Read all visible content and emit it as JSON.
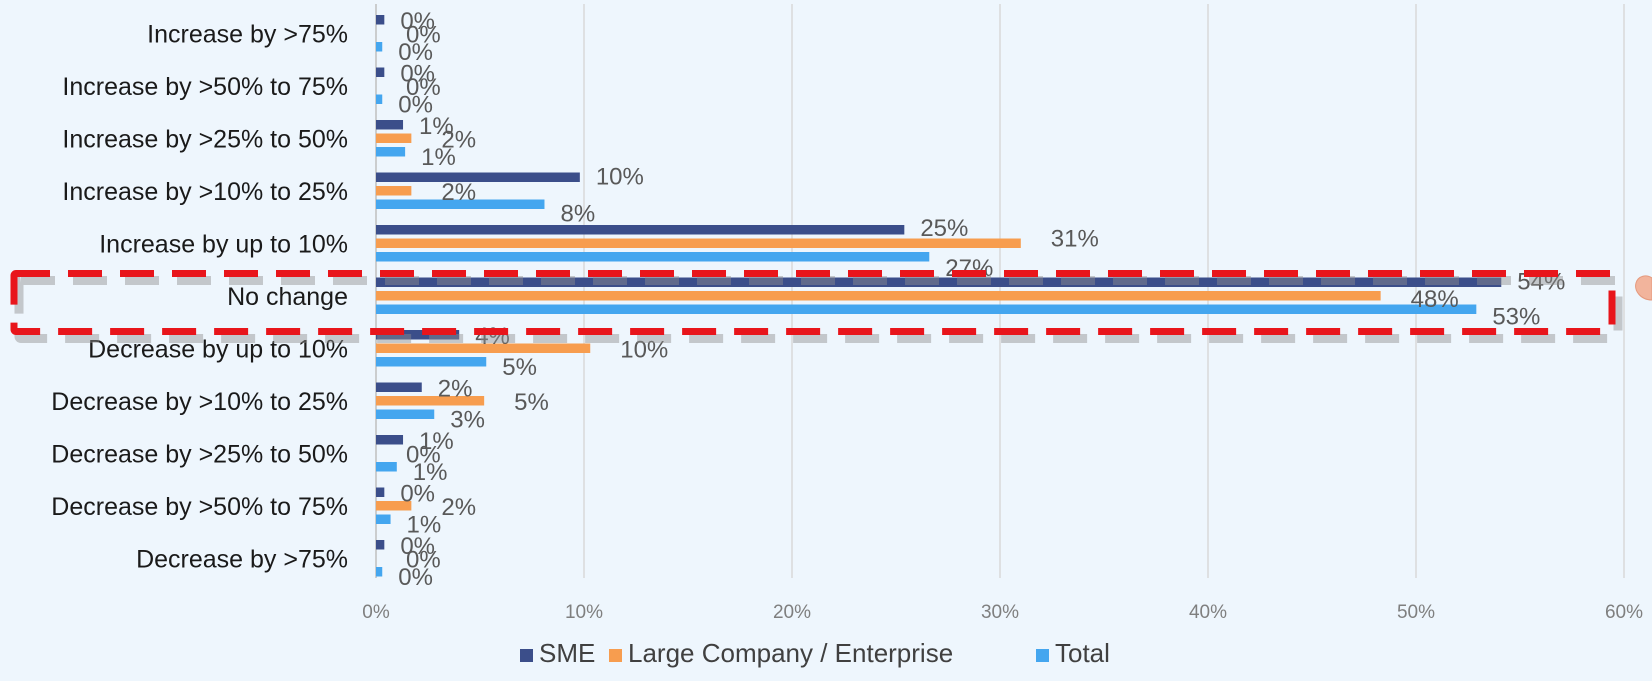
{
  "chart_data": {
    "type": "bar",
    "orientation": "horizontal",
    "categories": [
      "Increase by >75%",
      "Increase by >50% to 75%",
      "Increase by >25% to 50%",
      "Increase by >10% to 25%",
      "Increase by up to 10%",
      "No change",
      "Decrease by up to 10%",
      "Decrease by >10% to 25%",
      "Decrease by >25% to 50%",
      "Decrease by >50% to 75%",
      "Decrease by >75%"
    ],
    "series": [
      {
        "name": "SME",
        "color": "#3b4e8a",
        "values": [
          0.4,
          0.4,
          1.3,
          9.8,
          25.4,
          54.1,
          4.0,
          2.2,
          1.3,
          0.4,
          0.4
        ],
        "labels": [
          "0%",
          "0%",
          "1%",
          "10%",
          "25%",
          "54%",
          "4%",
          "2%",
          "1%",
          "0%",
          "0%"
        ]
      },
      {
        "name": "Large Company / Enterprise",
        "color": "#f79d4f",
        "values": [
          0.0,
          0.0,
          1.7,
          1.7,
          31.0,
          48.3,
          10.3,
          5.2,
          0.0,
          1.7,
          0.0
        ],
        "labels": [
          "0%",
          "0%",
          "2%",
          "2%",
          "31%",
          "48%",
          "10%",
          "5%",
          "0%",
          "2%",
          "0%"
        ]
      },
      {
        "name": "Total",
        "color": "#44a6ef",
        "values": [
          0.3,
          0.3,
          1.4,
          8.1,
          26.6,
          52.9,
          5.3,
          2.8,
          1.0,
          0.7,
          0.3
        ],
        "labels": [
          "0%",
          "0%",
          "1%",
          "8%",
          "27%",
          "53%",
          "5%",
          "3%",
          "1%",
          "1%",
          "0%"
        ]
      }
    ],
    "xlim": [
      0,
      60
    ],
    "xticks": [
      0,
      10,
      20,
      30,
      40,
      50,
      60
    ],
    "xtick_labels": [
      "0%",
      "10%",
      "20%",
      "30%",
      "40%",
      "50%",
      "60%"
    ],
    "grid": true,
    "legend_position": "bottom",
    "highlight_category": "No change",
    "highlight_color": "#e8151b"
  }
}
